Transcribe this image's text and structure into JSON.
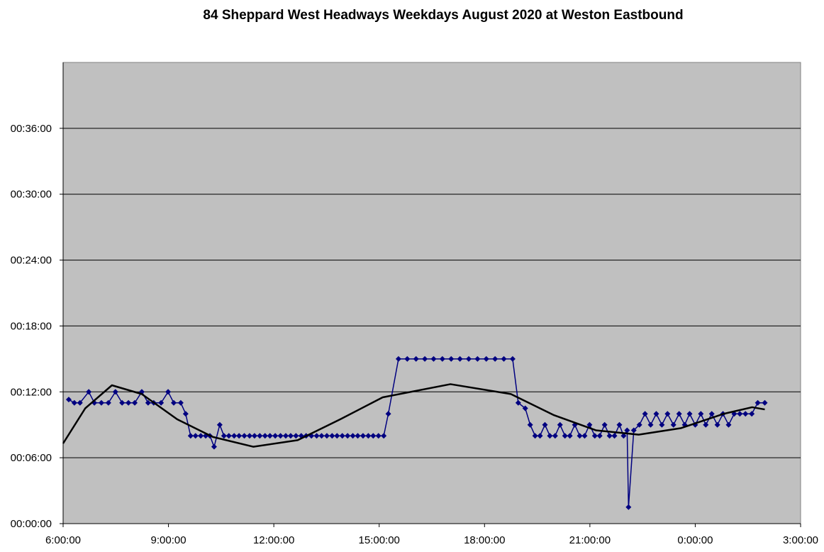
{
  "chart_data": {
    "type": "line",
    "title": "84 Sheppard West Headways Weekdays August 2020 at Weston Eastbound",
    "background": "#c0c0c0",
    "grid": true,
    "xlim": [
      6,
      27
    ],
    "xticks": [
      {
        "value": 6,
        "label": "6:00:00"
      },
      {
        "value": 9,
        "label": "9:00:00"
      },
      {
        "value": 12,
        "label": "12:00:00"
      },
      {
        "value": 15,
        "label": "15:00:00"
      },
      {
        "value": 18,
        "label": "18:00:00"
      },
      {
        "value": 21,
        "label": "21:00:00"
      },
      {
        "value": 24,
        "label": "0:00:00"
      },
      {
        "value": 27,
        "label": "3:00:00"
      }
    ],
    "ylim": [
      0,
      42
    ],
    "yticks": [
      {
        "value": 0,
        "label": "00:00:00"
      },
      {
        "value": 6,
        "label": "00:06:00"
      },
      {
        "value": 12,
        "label": "00:12:00"
      },
      {
        "value": 18,
        "label": "00:18:00"
      },
      {
        "value": 24,
        "label": "00:24:00"
      },
      {
        "value": 30,
        "label": "00:30:00"
      },
      {
        "value": 36,
        "label": "00:36:00"
      }
    ],
    "series": [
      {
        "color": "#000080",
        "marker": "diamond",
        "width": 1.5,
        "x": [
          6.16,
          6.32,
          6.48,
          6.73,
          6.89,
          7.09,
          7.29,
          7.49,
          7.68,
          7.86,
          8.04,
          8.24,
          8.42,
          8.58,
          8.79,
          8.99,
          9.15,
          9.35,
          9.49,
          9.63,
          9.77,
          9.92,
          10.06,
          10.18,
          10.3,
          10.46,
          10.58,
          10.72,
          10.87,
          11.01,
          11.16,
          11.31,
          11.45,
          11.6,
          11.75,
          11.89,
          12.04,
          12.19,
          12.34,
          12.48,
          12.63,
          12.78,
          12.92,
          13.07,
          13.22,
          13.36,
          13.51,
          13.66,
          13.8,
          13.95,
          14.1,
          14.25,
          14.39,
          14.54,
          14.69,
          14.83,
          14.98,
          15.13,
          15.26,
          15.55,
          15.8,
          16.05,
          16.3,
          16.55,
          16.8,
          17.05,
          17.3,
          17.55,
          17.8,
          18.05,
          18.3,
          18.55,
          18.8,
          18.96,
          19.16,
          19.3,
          19.44,
          19.58,
          19.72,
          19.86,
          20.01,
          20.15,
          20.29,
          20.43,
          20.57,
          20.71,
          20.85,
          20.99,
          21.14,
          21.28,
          21.42,
          21.56,
          21.7,
          21.84,
          21.96,
          22.06,
          22.1,
          22.25,
          22.41,
          22.57,
          22.73,
          22.89,
          23.05,
          23.21,
          23.38,
          23.54,
          23.7,
          23.84,
          24.0,
          24.16,
          24.3,
          24.47,
          24.63,
          24.79,
          24.95,
          25.11,
          25.27,
          25.43,
          25.61,
          25.78,
          25.98
        ],
        "values": [
          11.3,
          11,
          11,
          12,
          11,
          11,
          11,
          12,
          11,
          11,
          11,
          12,
          11,
          11,
          11,
          12,
          11,
          11,
          10,
          8,
          8,
          8,
          8,
          8,
          7,
          9,
          8,
          8,
          8,
          8,
          8,
          8,
          8,
          8,
          8,
          8,
          8,
          8,
          8,
          8,
          8,
          8,
          8,
          8,
          8,
          8,
          8,
          8,
          8,
          8,
          8,
          8,
          8,
          8,
          8,
          8,
          8,
          8,
          10,
          15,
          15,
          15,
          15,
          15,
          15,
          15,
          15,
          15,
          15,
          15,
          15,
          15,
          15,
          11,
          10.5,
          9,
          8,
          8,
          9,
          8,
          8,
          9,
          8,
          8,
          9,
          8,
          8,
          9,
          8,
          8,
          9,
          8,
          8,
          9,
          8,
          8.5,
          1.5,
          8.5,
          9,
          10,
          9,
          10,
          9,
          10,
          9,
          10,
          9,
          10,
          9,
          10,
          9,
          10,
          9,
          10,
          9,
          10,
          10,
          10,
          10,
          11,
          11
        ]
      },
      {
        "color": "#000000",
        "marker": "none",
        "width": 2.5,
        "x": [
          6.0,
          6.63,
          7.39,
          8.24,
          9.25,
          10.26,
          11.42,
          12.68,
          13.89,
          15.1,
          17.03,
          18.75,
          19.96,
          21.17,
          22.39,
          23.6,
          24.81,
          25.62,
          25.98
        ],
        "values": [
          7.3,
          10.5,
          12.6,
          11.8,
          9.5,
          7.9,
          7.0,
          7.6,
          9.5,
          11.5,
          12.7,
          11.8,
          9.9,
          8.5,
          8.1,
          8.7,
          10.0,
          10.6,
          10.4
        ]
      }
    ]
  }
}
